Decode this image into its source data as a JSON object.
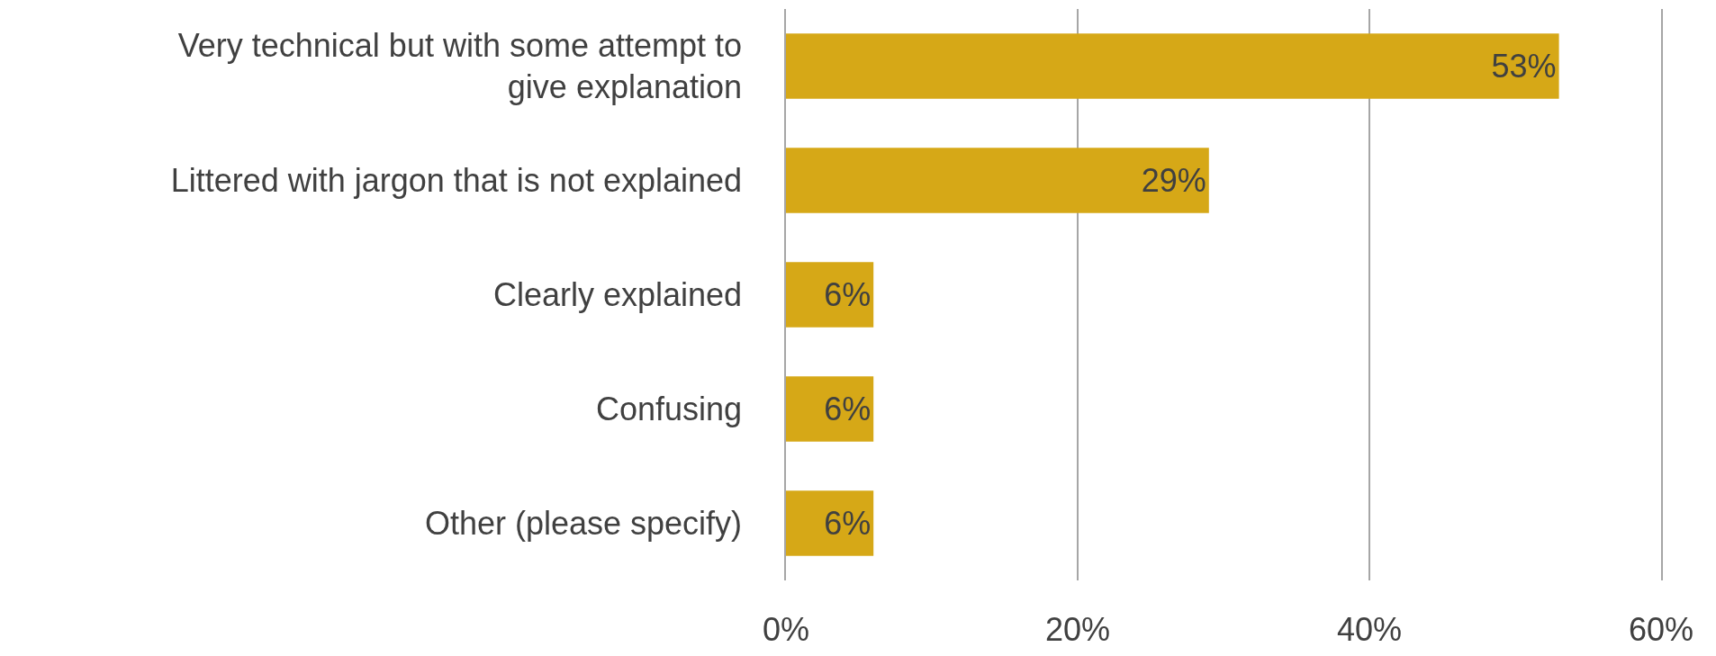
{
  "chart_data": {
    "type": "bar",
    "orientation": "horizontal",
    "categories": [
      "Very technical but with some attempt to give explanation",
      "Littered with jargon that is not explained",
      "Clearly explained",
      "Confusing",
      "Other (please specify)"
    ],
    "values": [
      53,
      29,
      6,
      6,
      6
    ],
    "value_labels": [
      "53%",
      "29%",
      "6%",
      "6%",
      "6%"
    ],
    "color": "#d6a817",
    "xlim": [
      0,
      60
    ],
    "xticks": [
      {
        "value": 0,
        "label": "0%"
      },
      {
        "value": 20,
        "label": "20%"
      },
      {
        "value": 40,
        "label": "40%"
      },
      {
        "value": 60,
        "label": "60%"
      }
    ],
    "grid": "x"
  }
}
